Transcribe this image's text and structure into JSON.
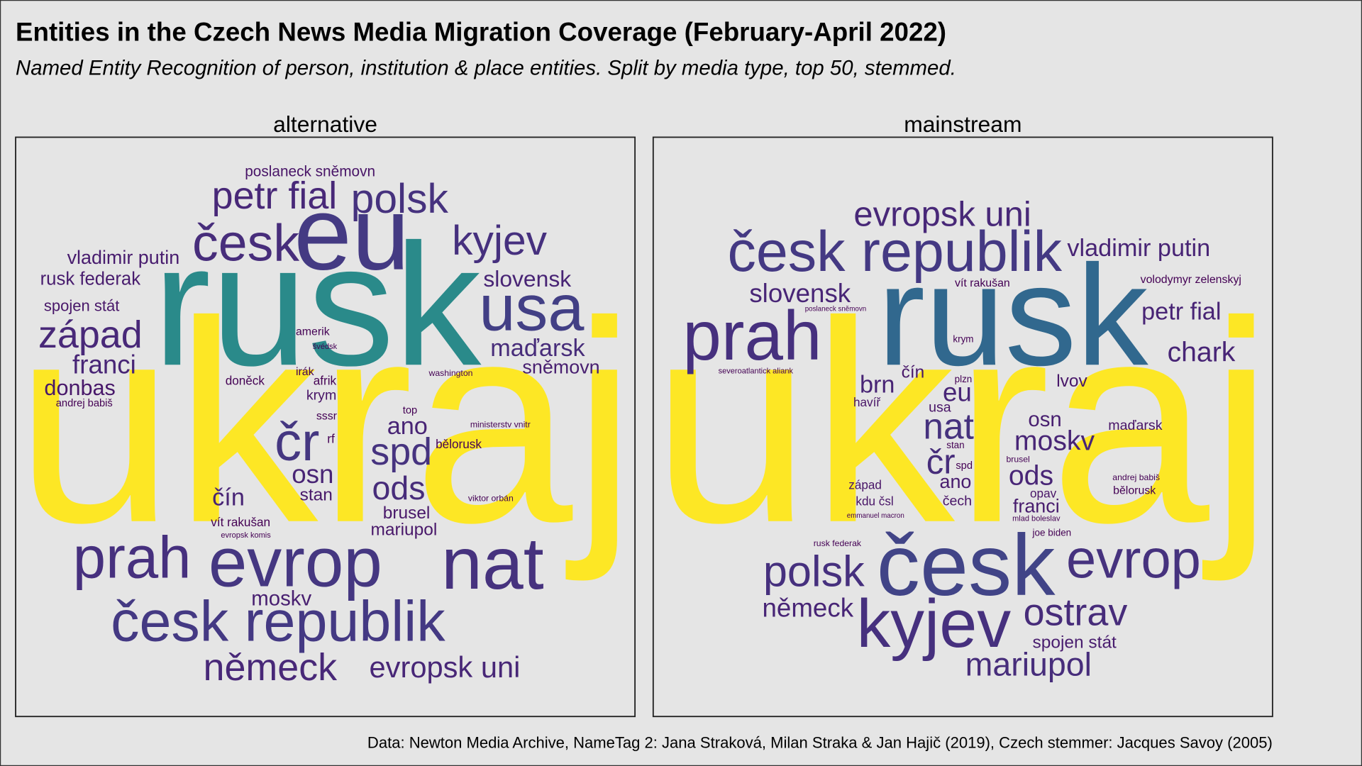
{
  "chart_data": {
    "type": "wordcloud",
    "title": "Entities in the Czech News Media Migration Coverage (February-April 2022)",
    "subtitle": "Named Entity Recognition of person, institution & place entities. Split by media type, top 50, stemmed.",
    "caption": "Data: Newton Media Archive, NameTag 2: Jana Straková, Milan Straka & Jan Hajič (2019), Czech stemmer: Jacques Savoy (2005)",
    "panels": [
      {
        "name": "alternative",
        "words": [
          {
            "text": "ukraj",
            "color": "#fde725"
          },
          {
            "text": "rusk",
            "color": "#2a8a8a"
          },
          {
            "text": "eu",
            "color": "#443a83"
          },
          {
            "text": "petr fial",
            "color": "#482878"
          },
          {
            "text": "polsk",
            "color": "#46327e"
          },
          {
            "text": "česk",
            "color": "#472d7b"
          },
          {
            "text": "kyjev",
            "color": "#46307e"
          },
          {
            "text": "usa",
            "color": "#423f85"
          },
          {
            "text": "slovensk",
            "color": "#482475"
          },
          {
            "text": "maďarsk",
            "color": "#472c7a"
          },
          {
            "text": "sněmovn",
            "color": "#481f70"
          },
          {
            "text": "vladimir putin",
            "color": "#481c6e"
          },
          {
            "text": "rusk federak",
            "color": "#481c6e"
          },
          {
            "text": "spojen stát",
            "color": "#481769"
          },
          {
            "text": "západ",
            "color": "#482878"
          },
          {
            "text": "franci",
            "color": "#482576"
          },
          {
            "text": "donbas",
            "color": "#48186a"
          },
          {
            "text": "andrej babiš",
            "color": "#440154"
          },
          {
            "text": "poslaneck sněmovn",
            "color": "#481467"
          },
          {
            "text": "amerik",
            "color": "#440154"
          },
          {
            "text": "švédsk",
            "color": "#440154"
          },
          {
            "text": "irák",
            "color": "#440154"
          },
          {
            "text": "afrik",
            "color": "#440154"
          },
          {
            "text": "doněck",
            "color": "#440154"
          },
          {
            "text": "washington",
            "color": "#440154"
          },
          {
            "text": "krym",
            "color": "#481467"
          },
          {
            "text": "top",
            "color": "#440154"
          },
          {
            "text": "sssr",
            "color": "#440154"
          },
          {
            "text": "rf",
            "color": "#440154"
          },
          {
            "text": "čr",
            "color": "#453781"
          },
          {
            "text": "ano",
            "color": "#482475"
          },
          {
            "text": "spd",
            "color": "#46337f"
          },
          {
            "text": "ministerstv vnitr",
            "color": "#440154"
          },
          {
            "text": "bělorusk",
            "color": "#440154"
          },
          {
            "text": "osn",
            "color": "#482475"
          },
          {
            "text": "stan",
            "color": "#481769"
          },
          {
            "text": "ods",
            "color": "#472c7a"
          },
          {
            "text": "čín",
            "color": "#482475"
          },
          {
            "text": "viktor orbán",
            "color": "#440154"
          },
          {
            "text": "brusel",
            "color": "#481769"
          },
          {
            "text": "mariupol",
            "color": "#481769"
          },
          {
            "text": "vít rakušan",
            "color": "#440154"
          },
          {
            "text": "evropsk komis",
            "color": "#440154"
          },
          {
            "text": "prah",
            "color": "#46307e"
          },
          {
            "text": "evrop",
            "color": "#453781"
          },
          {
            "text": "nat",
            "color": "#46327e"
          },
          {
            "text": "moskv",
            "color": "#481f70"
          },
          {
            "text": "česk republik",
            "color": "#443983"
          },
          {
            "text": "německ",
            "color": "#482878"
          },
          {
            "text": "evropsk uni",
            "color": "#482777"
          }
        ]
      },
      {
        "name": "mainstream",
        "words": [
          {
            "text": "ukraj",
            "color": "#fde725"
          },
          {
            "text": "rusk",
            "color": "#31688e"
          },
          {
            "text": "česk republik",
            "color": "#443983"
          },
          {
            "text": "evropsk uni",
            "color": "#482878"
          },
          {
            "text": "vladimir putin",
            "color": "#482475"
          },
          {
            "text": "vít rakušan",
            "color": "#440154"
          },
          {
            "text": "volodymyr zelenskyj",
            "color": "#440154"
          },
          {
            "text": "slovensk",
            "color": "#482576"
          },
          {
            "text": "poslaneck sněmovn",
            "color": "#440154"
          },
          {
            "text": "prah",
            "color": "#46307e"
          },
          {
            "text": "petr fial",
            "color": "#482475"
          },
          {
            "text": "krym",
            "color": "#440154"
          },
          {
            "text": "chark",
            "color": "#482576"
          },
          {
            "text": "severoatlantick aliank",
            "color": "#440154"
          },
          {
            "text": "brn",
            "color": "#482475"
          },
          {
            "text": "čín",
            "color": "#481769"
          },
          {
            "text": "plzn",
            "color": "#440154"
          },
          {
            "text": "lvov",
            "color": "#481769"
          },
          {
            "text": "eu",
            "color": "#482576"
          },
          {
            "text": "havíř",
            "color": "#481467"
          },
          {
            "text": "usa",
            "color": "#481467"
          },
          {
            "text": "nat",
            "color": "#46327e"
          },
          {
            "text": "osn",
            "color": "#481f70"
          },
          {
            "text": "maďarsk",
            "color": "#481467"
          },
          {
            "text": "moskv",
            "color": "#482576"
          },
          {
            "text": "stan",
            "color": "#440154"
          },
          {
            "text": "čr",
            "color": "#472d7b"
          },
          {
            "text": "brusel",
            "color": "#440154"
          },
          {
            "text": "spd",
            "color": "#440154"
          },
          {
            "text": "ods",
            "color": "#482576"
          },
          {
            "text": "ano",
            "color": "#481c6e"
          },
          {
            "text": "andrej babiš",
            "color": "#440154"
          },
          {
            "text": "západ",
            "color": "#481467"
          },
          {
            "text": "opav",
            "color": "#481467"
          },
          {
            "text": "bělorusk",
            "color": "#440154"
          },
          {
            "text": "kdu čsl",
            "color": "#481467"
          },
          {
            "text": "čech",
            "color": "#481467"
          },
          {
            "text": "franci",
            "color": "#481c6e"
          },
          {
            "text": "emmanuel macron",
            "color": "#440154"
          },
          {
            "text": "mlad boleslav",
            "color": "#440154"
          },
          {
            "text": "joe biden",
            "color": "#440154"
          },
          {
            "text": "rusk federak",
            "color": "#440154"
          },
          {
            "text": "polsk",
            "color": "#46307e"
          },
          {
            "text": "česk",
            "color": "#414487"
          },
          {
            "text": "evrop",
            "color": "#46327e"
          },
          {
            "text": "německ",
            "color": "#482576"
          },
          {
            "text": "kyjev",
            "color": "#46307e"
          },
          {
            "text": "ostrav",
            "color": "#472c7a"
          },
          {
            "text": "spojen stát",
            "color": "#481c6e"
          },
          {
            "text": "mariupol",
            "color": "#472d7b"
          }
        ]
      }
    ]
  }
}
